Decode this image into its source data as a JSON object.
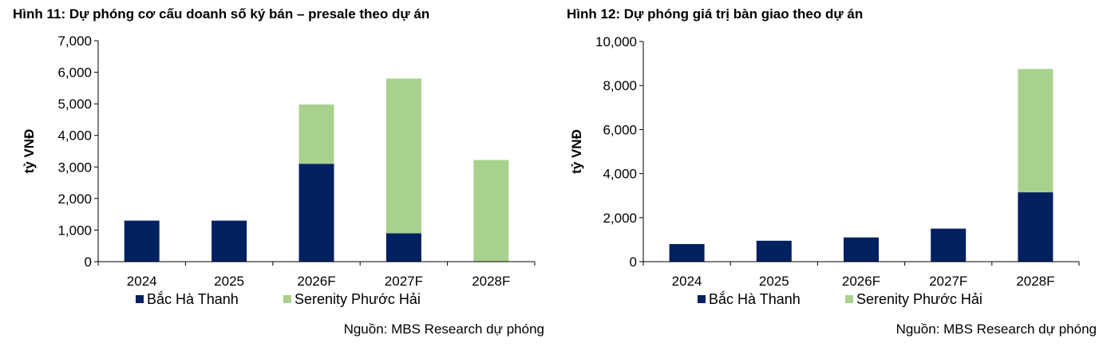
{
  "colors": {
    "bac_ha_thanh": "#002060",
    "serenity_phuoc_hai": "#a9d18e",
    "axis": "#000000"
  },
  "charts": [
    {
      "title": "Hình 11: Dự phóng cơ cấu doanh số ký bán – presale theo dự án",
      "source": "Nguồn: MBS Research dự phóng"
    },
    {
      "title": "Hình 12: Dự phóng giá trị bàn giao theo dự án",
      "source": "Nguồn: MBS Research dự phóng"
    }
  ],
  "chart_data": [
    {
      "type": "bar",
      "stacked": true,
      "title": "Hình 11: Dự phóng cơ cấu doanh số ký bán – presale theo dự án",
      "ylabel": "tỷ VNĐ",
      "xlabel": "",
      "categories": [
        "2024",
        "2025",
        "2026F",
        "2027F",
        "2028F"
      ],
      "series": [
        {
          "name": "Bắc Hà Thanh",
          "values": [
            1300,
            1300,
            3100,
            900,
            0
          ]
        },
        {
          "name": "Serenity Phước Hải",
          "values": [
            0,
            0,
            1880,
            4900,
            3220
          ]
        }
      ],
      "ylim": [
        0,
        7000
      ],
      "yticks": [
        0,
        1000,
        2000,
        3000,
        4000,
        5000,
        6000,
        7000
      ],
      "ytick_labels": [
        "0",
        "1,000",
        "2,000",
        "3,000",
        "4,000",
        "5,000",
        "6,000",
        "7,000"
      ],
      "grid": false,
      "legend": "bottom"
    },
    {
      "type": "bar",
      "stacked": true,
      "title": "Hình 12: Dự phóng giá trị bàn giao theo dự án",
      "ylabel": "tỷ VNĐ",
      "xlabel": "",
      "categories": [
        "2024",
        "2025",
        "2026F",
        "2027F",
        "2028F"
      ],
      "series": [
        {
          "name": "Bắc Hà Thanh",
          "values": [
            800,
            950,
            1100,
            1500,
            3150
          ]
        },
        {
          "name": "Serenity Phước Hải",
          "values": [
            0,
            0,
            0,
            0,
            5600
          ]
        }
      ],
      "ylim": [
        0,
        10000
      ],
      "yticks": [
        0,
        2000,
        4000,
        6000,
        8000,
        10000
      ],
      "ytick_labels": [
        "0",
        "2,000",
        "4,000",
        "6,000",
        "8,000",
        "10,000"
      ],
      "grid": false,
      "legend": "bottom"
    }
  ]
}
